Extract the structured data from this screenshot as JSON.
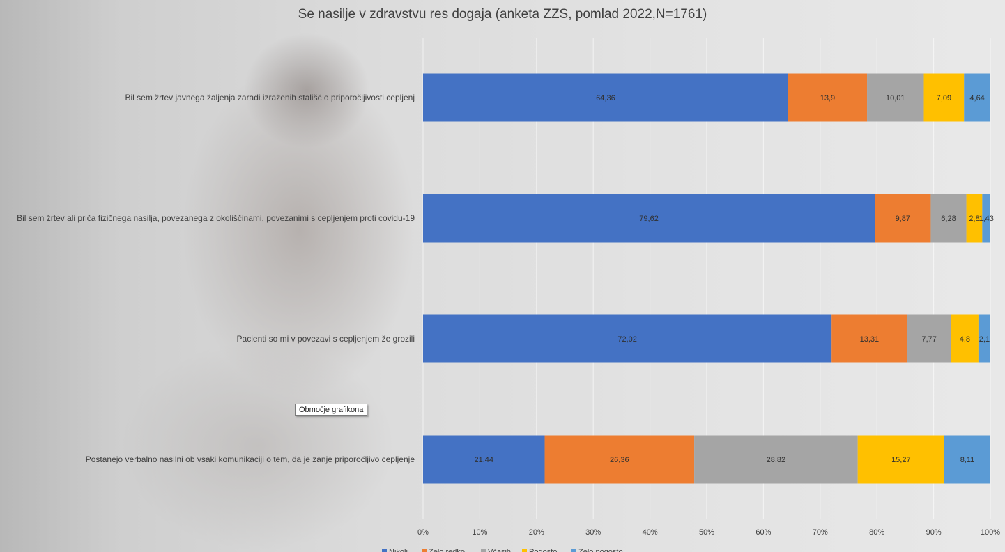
{
  "chart_data": {
    "type": "bar",
    "orientation": "horizontal",
    "stacked": true,
    "title": "Se nasilje v zdravstvu res dogaja (anketa ZZS, pomlad 2022,N=1761)",
    "categories": [
      "Bil sem žrtev javnega žaljenja zaradi izraženih stališč o priporočljivosti cepljenj",
      "Bil sem žrtev ali priča fizičnega nasilja, povezanega z okoliščinami, povezanimi s cepljenjem proti covidu-19",
      "Pacienti so mi v povezavi s cepljenjem že grozili",
      "Postanejo verbalno nasilni ob vsaki komunikaciji o tem, da je zanje priporočljivo cepljenje"
    ],
    "series": [
      {
        "name": "Nikoli",
        "color": "#4472C4",
        "values": [
          64.36,
          79.62,
          72.02,
          21.44
        ],
        "labels": [
          "64,36",
          "79,62",
          "72,02",
          "21,44"
        ]
      },
      {
        "name": "Zelo redko",
        "color": "#ED7D31",
        "values": [
          13.9,
          9.87,
          13.31,
          26.36
        ],
        "labels": [
          "13,9",
          "9,87",
          "13,31",
          "26,36"
        ]
      },
      {
        "name": "Včasih",
        "color": "#A5A5A5",
        "values": [
          10.01,
          6.28,
          7.77,
          28.82
        ],
        "labels": [
          "10,01",
          "6,28",
          "7,77",
          "28,82"
        ]
      },
      {
        "name": "Pogosto",
        "color": "#FFC000",
        "values": [
          7.09,
          2.8,
          4.8,
          15.27
        ],
        "labels": [
          "7,09",
          "2,8",
          "4,8",
          "15,27"
        ]
      },
      {
        "name": "Zelo pogosto",
        "color": "#5B9BD5",
        "values": [
          4.64,
          1.43,
          2.1,
          8.11
        ],
        "labels": [
          "4,64",
          "1,43",
          "2,1",
          "8,11"
        ]
      }
    ],
    "xlim": [
      0,
      100
    ],
    "xticks": [
      "0%",
      "10%",
      "20%",
      "30%",
      "40%",
      "50%",
      "60%",
      "70%",
      "80%",
      "90%",
      "100%"
    ],
    "grid": true,
    "legend": "bottom"
  },
  "tooltip": "Območje grafikona"
}
